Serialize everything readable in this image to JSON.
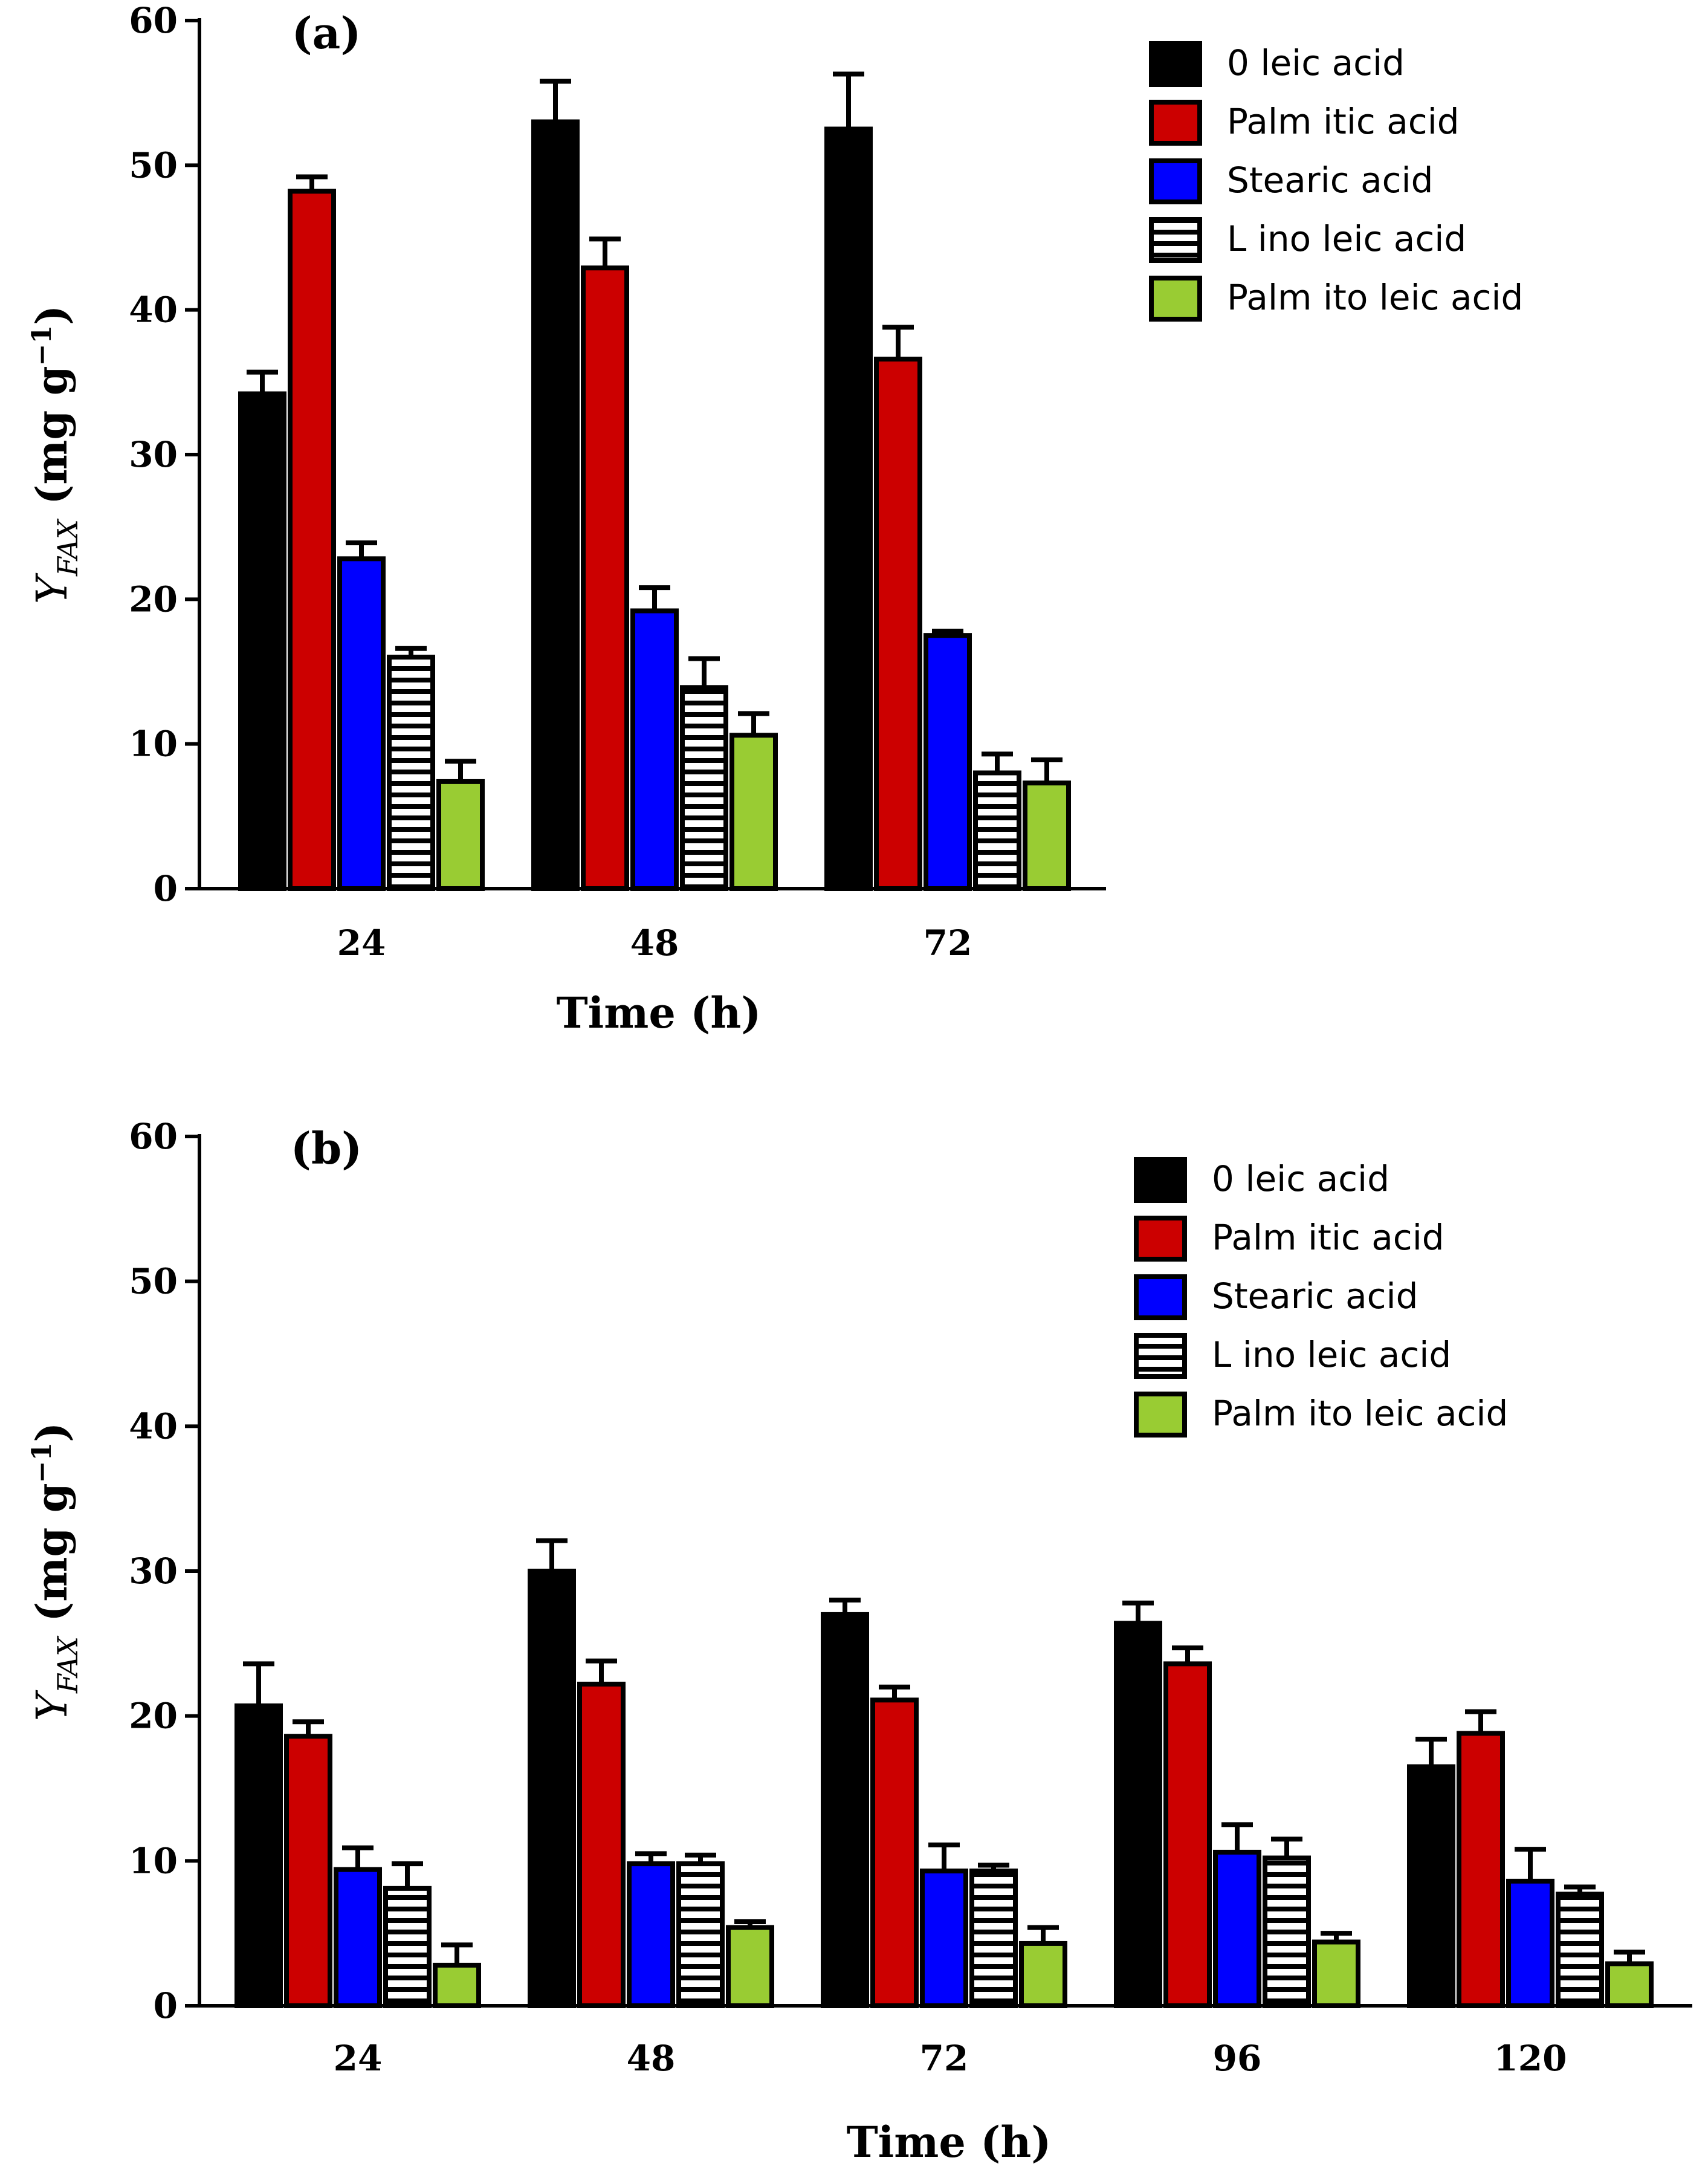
{
  "chart_data": [
    {
      "type": "bar",
      "panel_label": "(a)",
      "title": "",
      "xlabel": "Time (h)",
      "ylabel_main": "Y",
      "ylabel_sub": "FAX",
      "ylabel_unit": " (mg g",
      "ylabel_sup": "−1",
      "ylabel_close": ")",
      "ylim": [
        0,
        60
      ],
      "yticks": [
        "0",
        "10",
        "20",
        "30",
        "40",
        "50",
        "60"
      ],
      "categories": [
        "24",
        "48",
        "72"
      ],
      "legend_position": "top-right",
      "series": [
        {
          "name": "0 leic acid",
          "color": "#000000",
          "pattern": "solid",
          "values": [
            34.2,
            53.0,
            52.5
          ],
          "errors": [
            1.5,
            2.8,
            3.8
          ]
        },
        {
          "name": "Palm itic acid",
          "color": "#cc0000",
          "pattern": "solid",
          "values": [
            48.2,
            42.9,
            36.6
          ],
          "errors": [
            1.0,
            2.0,
            2.2
          ]
        },
        {
          "name": "Stearic acid",
          "color": "#0000ff",
          "pattern": "solid",
          "values": [
            22.8,
            19.2,
            17.5
          ],
          "errors": [
            1.1,
            1.6,
            0.3
          ]
        },
        {
          "name": "L ino leic acid",
          "color": "#ffffff",
          "pattern": "stripes",
          "values": [
            16.0,
            13.9,
            8.0
          ],
          "errors": [
            0.6,
            2.0,
            1.3
          ]
        },
        {
          "name": "Palm ito leic acid",
          "color": "#99cc33",
          "pattern": "solid",
          "values": [
            7.4,
            10.6,
            7.3
          ],
          "errors": [
            1.4,
            1.5,
            1.6
          ]
        }
      ]
    },
    {
      "type": "bar",
      "panel_label": "(b)",
      "title": "",
      "xlabel": "Time (h)",
      "ylabel_main": "Y",
      "ylabel_sub": "FAX",
      "ylabel_unit": " (mg g",
      "ylabel_sup": "−1",
      "ylabel_close": ")",
      "ylim": [
        0,
        60
      ],
      "yticks": [
        "0",
        "10",
        "20",
        "30",
        "40",
        "50",
        "60"
      ],
      "categories": [
        "24",
        "48",
        "72",
        "96",
        "120"
      ],
      "legend_position": "top-right",
      "series": [
        {
          "name": "0 leic acid",
          "color": "#000000",
          "pattern": "solid",
          "values": [
            20.7,
            30.0,
            27.0,
            26.4,
            16.5
          ],
          "errors": [
            2.9,
            2.1,
            1.0,
            1.4,
            1.9
          ]
        },
        {
          "name": "Palm itic acid",
          "color": "#cc0000",
          "pattern": "solid",
          "values": [
            18.6,
            22.2,
            21.1,
            23.6,
            18.8
          ],
          "errors": [
            1.0,
            1.6,
            0.9,
            1.1,
            1.5
          ]
        },
        {
          "name": "Stearic acid",
          "color": "#0000ff",
          "pattern": "solid",
          "values": [
            9.4,
            9.8,
            9.3,
            10.6,
            8.6
          ],
          "errors": [
            1.5,
            0.7,
            1.8,
            1.9,
            2.2
          ]
        },
        {
          "name": "L ino leic acid",
          "color": "#ffffff",
          "pattern": "stripes",
          "values": [
            8.1,
            9.8,
            9.3,
            10.2,
            7.7
          ],
          "errors": [
            1.7,
            0.6,
            0.4,
            1.3,
            0.5
          ]
        },
        {
          "name": "Palm ito leic acid",
          "color": "#99cc33",
          "pattern": "solid",
          "values": [
            2.8,
            5.4,
            4.3,
            4.4,
            2.9
          ],
          "errors": [
            1.4,
            0.4,
            1.1,
            0.6,
            0.8
          ]
        }
      ]
    }
  ]
}
